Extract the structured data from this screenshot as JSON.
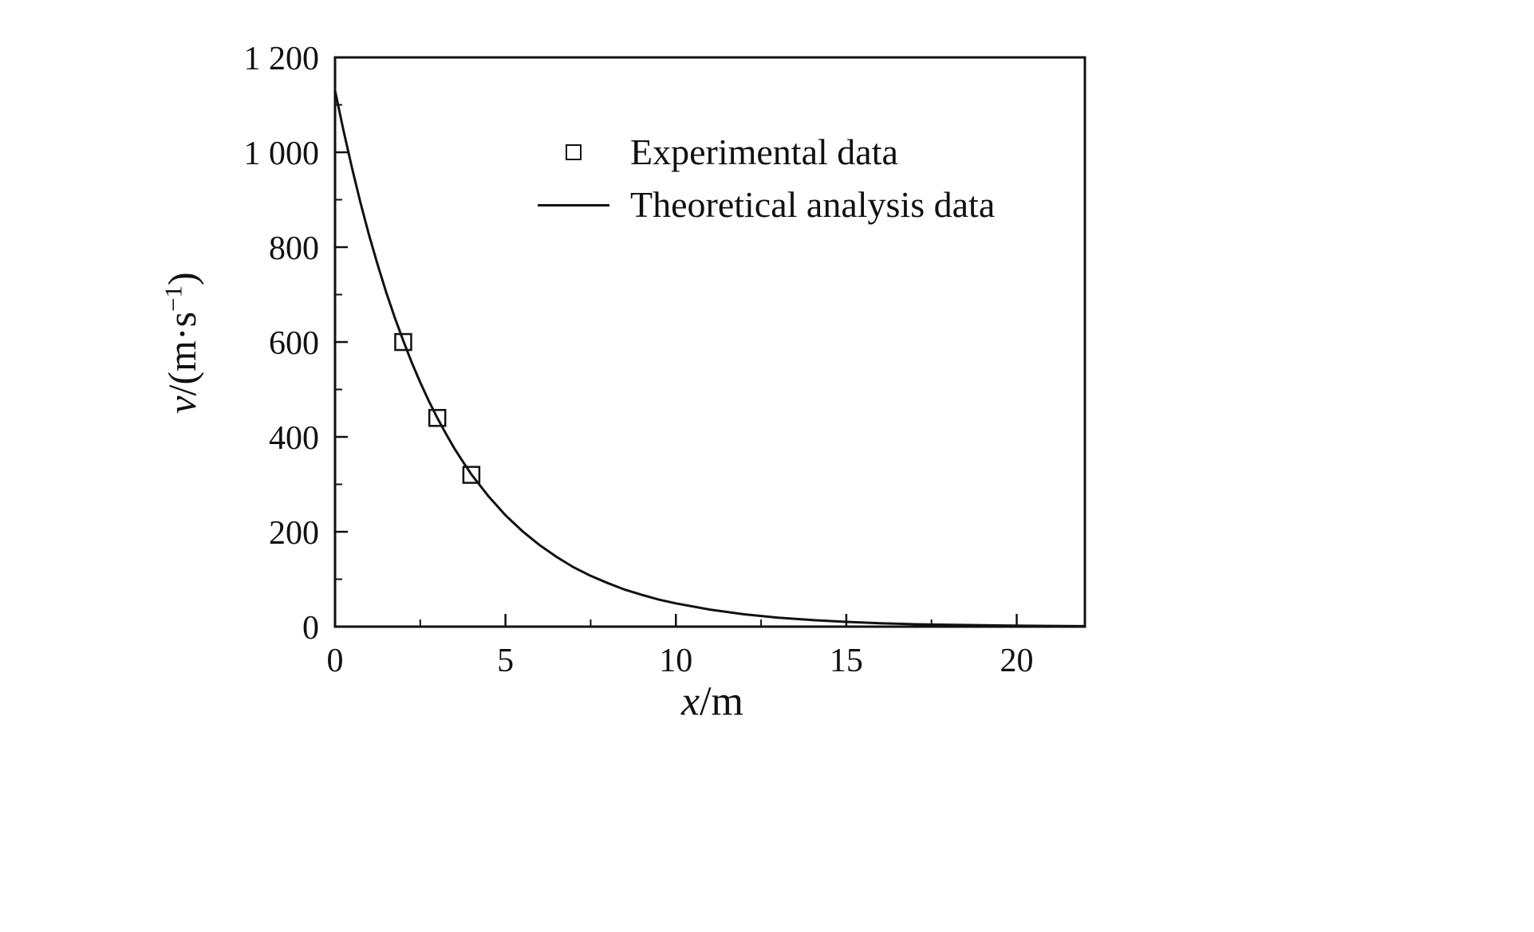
{
  "figure": {
    "background": "#ffffff",
    "foreground": "#111111"
  },
  "chart_data": {
    "type": "line",
    "title": "",
    "xlabel": "x/m",
    "ylabel": "v/(m·s⁻¹)",
    "xlabel_parts": {
      "var": "x",
      "rest": "/m"
    },
    "ylabel_parts": {
      "var": "v",
      "mid": "/(m·s",
      "sup": "−1",
      "post": ")"
    },
    "xlim": [
      0,
      22
    ],
    "ylim": [
      0,
      1200
    ],
    "x_ticks": [
      0,
      5,
      10,
      15,
      20
    ],
    "x_tick_labels": [
      "0",
      "5",
      "10",
      "15",
      "20"
    ],
    "x_minor_ticks": [
      2.5,
      7.5,
      12.5,
      17.5
    ],
    "y_ticks": [
      0,
      200,
      400,
      600,
      800,
      1000,
      1200
    ],
    "y_tick_labels": [
      "0",
      "200",
      "400",
      "600",
      "800",
      "1 000",
      "1 200"
    ],
    "y_minor_ticks": [
      100,
      300,
      500,
      700,
      900,
      1100
    ],
    "grid": false,
    "legend_position": "inside upper right",
    "series": [
      {
        "name": "Experimental data",
        "type": "scatter",
        "marker": "open-square",
        "x": [
          2,
          3,
          4
        ],
        "y": [
          600,
          440,
          320
        ]
      },
      {
        "name": "Theoretical analysis data",
        "type": "line",
        "x": [
          0,
          0.25,
          0.5,
          0.75,
          1,
          1.25,
          1.5,
          1.75,
          2,
          2.25,
          2.5,
          2.75,
          3,
          3.25,
          3.5,
          3.75,
          4,
          4.5,
          5,
          5.5,
          6,
          6.5,
          7,
          7.5,
          8,
          8.5,
          9,
          9.5,
          10,
          11,
          12,
          13,
          14,
          15,
          16,
          17,
          18,
          19,
          20,
          21,
          22
        ],
        "y": [
          1130,
          1045,
          966,
          893,
          825,
          763,
          705,
          652,
          603,
          557,
          515,
          476,
          440,
          407,
          376,
          348,
          321,
          275,
          235,
          201,
          172,
          147,
          125,
          107,
          92,
          78,
          67,
          57,
          49,
          36,
          26,
          19,
          14,
          10,
          7,
          5,
          4,
          3,
          2,
          1.5,
          1
        ]
      }
    ]
  }
}
